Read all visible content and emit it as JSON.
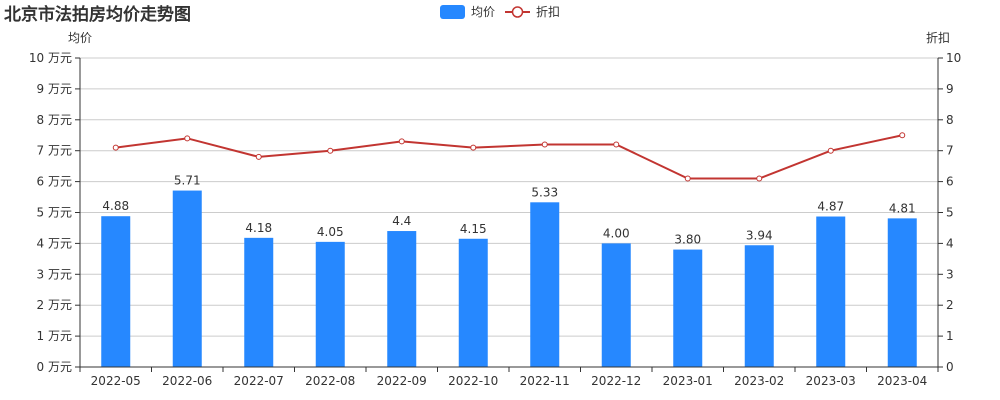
{
  "title": "北京市法拍房均价走势图",
  "legend": [
    {
      "label": "均价",
      "type": "bar",
      "color": "#2688FF"
    },
    {
      "label": "折扣",
      "type": "line",
      "color": "#C23531"
    }
  ],
  "colors": {
    "bar": "#2688FF",
    "line": "#C23531",
    "grid": "#CCCCCC",
    "axis": "#333333"
  },
  "chart_data": {
    "type": "bar",
    "title": "北京市法拍房均价走势图",
    "categories": [
      "2022-05",
      "2022-06",
      "2022-07",
      "2022-08",
      "2022-09",
      "2022-10",
      "2022-11",
      "2022-12",
      "2023-01",
      "2023-02",
      "2023-03",
      "2023-04"
    ],
    "series": [
      {
        "name": "均价",
        "type": "bar",
        "axis": "left",
        "values": [
          4.88,
          5.71,
          4.18,
          4.05,
          4.4,
          4.15,
          5.33,
          4.0,
          3.8,
          3.94,
          4.87,
          4.81
        ],
        "labels": [
          "4.88",
          "5.71",
          "4.18",
          "4.05",
          "4.4",
          "4.15",
          "5.33",
          "4.00",
          "3.80",
          "3.94",
          "4.87",
          "4.81"
        ]
      },
      {
        "name": "折扣",
        "type": "line",
        "axis": "right",
        "values": [
          7.1,
          7.4,
          6.8,
          7.0,
          7.3,
          7.1,
          7.2,
          7.2,
          6.1,
          6.1,
          7.0,
          7.5
        ]
      }
    ],
    "ylabel": "均价",
    "ylabel_right": "折扣",
    "ylim": [
      0,
      10
    ],
    "ylim_right": [
      0,
      10
    ],
    "yticks": [
      "0 万元",
      "1 万元",
      "2 万元",
      "3 万元",
      "4 万元",
      "5 万元",
      "6 万元",
      "7 万元",
      "8 万元",
      "9 万元",
      "10 万元"
    ],
    "yticks_right": [
      "0",
      "1",
      "2",
      "3",
      "4",
      "5",
      "6",
      "7",
      "8",
      "9",
      "10"
    ],
    "grid": true,
    "legend_position": "top-center"
  }
}
